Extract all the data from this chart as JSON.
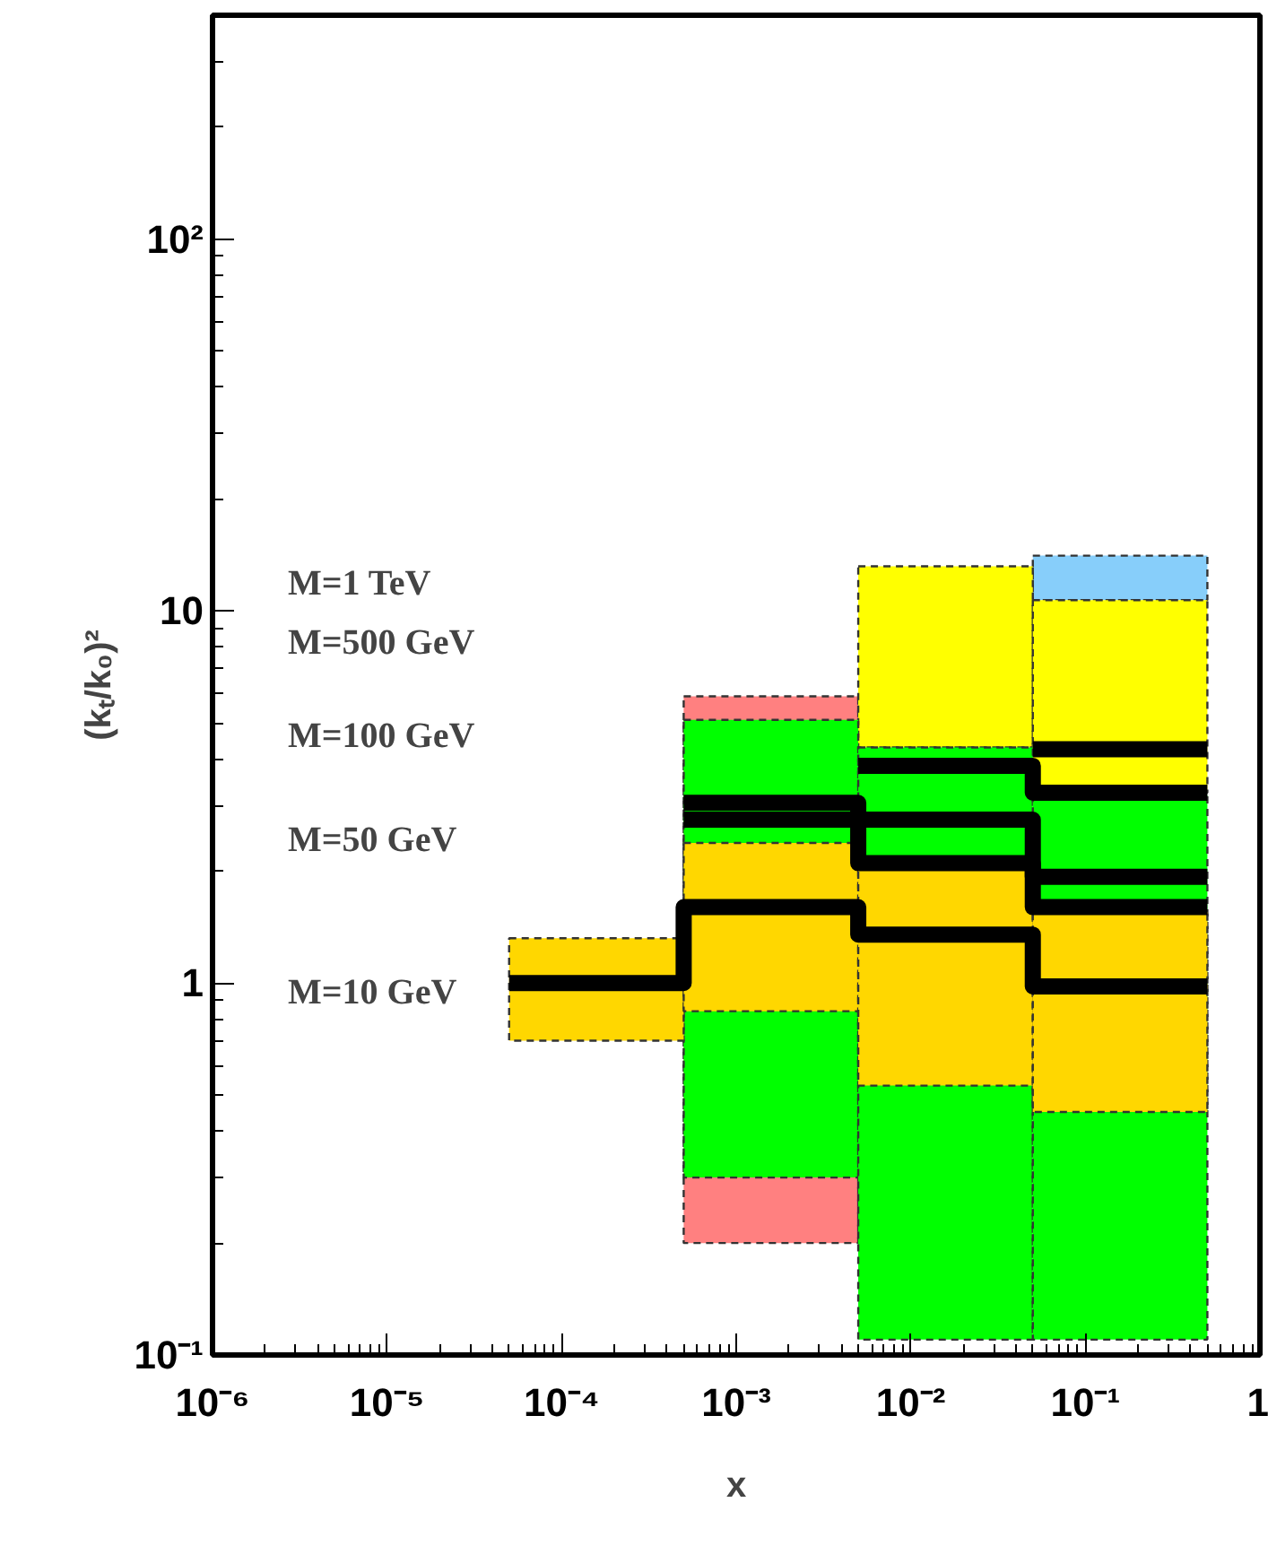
{
  "chart_data": {
    "type": "histogram",
    "xlabel": "x",
    "ylabel": "(kₜ/k₀)²",
    "bins": [
      5e-05,
      0.0005,
      0.005,
      0.05,
      0.5
    ],
    "log": "xy",
    "grid": false,
    "xlim": [
      1e-06,
      1
    ],
    "ylim": [
      0.1,
      400
    ],
    "xticks": [
      {
        "value": 1e-06,
        "label": "10⁻⁶"
      },
      {
        "value": 1e-05,
        "label": "10⁻⁵"
      },
      {
        "value": 0.0001,
        "label": "10⁻⁴"
      },
      {
        "value": 0.001,
        "label": "10⁻³"
      },
      {
        "value": 0.01,
        "label": "10⁻²"
      },
      {
        "value": 0.1,
        "label": "10⁻¹"
      },
      1
    ],
    "yticks": [
      {
        "value": 0.1,
        "label": "10⁻¹"
      },
      1,
      10,
      {
        "value": 100,
        "label": "10²"
      }
    ],
    "series": [
      {
        "color": "#ff8080",
        "line_style": "dashed",
        "base": [
          null,
          0.2,
          null,
          null
        ],
        "values": [
          null,
          5.7,
          null,
          null
        ]
      },
      {
        "color": "#87cefa",
        "line_style": "dashed",
        "base": [
          null,
          null,
          null,
          10.7
        ],
        "values": [
          null,
          null,
          null,
          3.4
        ]
      },
      {
        "color": "#ffff00",
        "line_style": "dashed",
        "base": [
          null,
          null,
          4.3,
          3.25
        ],
        "values": [
          null,
          null,
          8.9,
          7.45
        ]
      },
      {
        "color": "#00ff00",
        "line_style": "dashed",
        "base": [
          null,
          0.3,
          0.11,
          0.11
        ],
        "values": [
          null,
          4.8,
          4.19,
          3.09
        ]
      },
      {
        "color": "#ffd700",
        "line_style": "dashed",
        "base": [
          0.7,
          0.84,
          0.53,
          0.45
        ],
        "values": [
          0.62,
          1.54,
          1.57,
          1.1
        ]
      },
      {
        "type": "line",
        "color": "#000000",
        "line_style": "solid",
        "x": [
          5e-05,
          0.0005,
          0.0005,
          0.005,
          0.005,
          0.05,
          0.05,
          0.5
        ],
        "values": [
          1.0,
          1.0,
          1.6,
          1.6,
          1.35,
          1.35,
          0.98,
          0.98
        ]
      },
      {
        "type": "line",
        "color": "#000000",
        "line_style": "solid",
        "x": [
          0.0005,
          0.005,
          0.005,
          0.05,
          0.05,
          0.5
        ],
        "values": [
          2.75,
          2.75,
          2.1,
          2.1,
          1.6,
          1.6
        ]
      },
      {
        "type": "line",
        "color": "#000000",
        "line_style": "solid",
        "x": [
          0.0005,
          0.005,
          0.005,
          0.05,
          0.05,
          0.5
        ],
        "values": [
          3.05,
          3.05,
          2.75,
          2.75,
          1.93,
          1.93
        ]
      },
      {
        "type": "line",
        "color": "#000000",
        "line_style": "solid",
        "x": [
          0.005,
          0.05,
          0.05,
          0.5
        ],
        "values": [
          3.84,
          3.84,
          3.25,
          3.25
        ]
      },
      {
        "type": "line",
        "color": "#000000",
        "line_style": "solid",
        "x": [
          0.05,
          0.5
        ],
        "values": [
          4.25,
          4.25
        ]
      }
    ],
    "annotations": [
      "M=1 TeV",
      "M=500 GeV",
      "M=100 GeV",
      "M=50 GeV",
      "M=10 GeV"
    ]
  }
}
